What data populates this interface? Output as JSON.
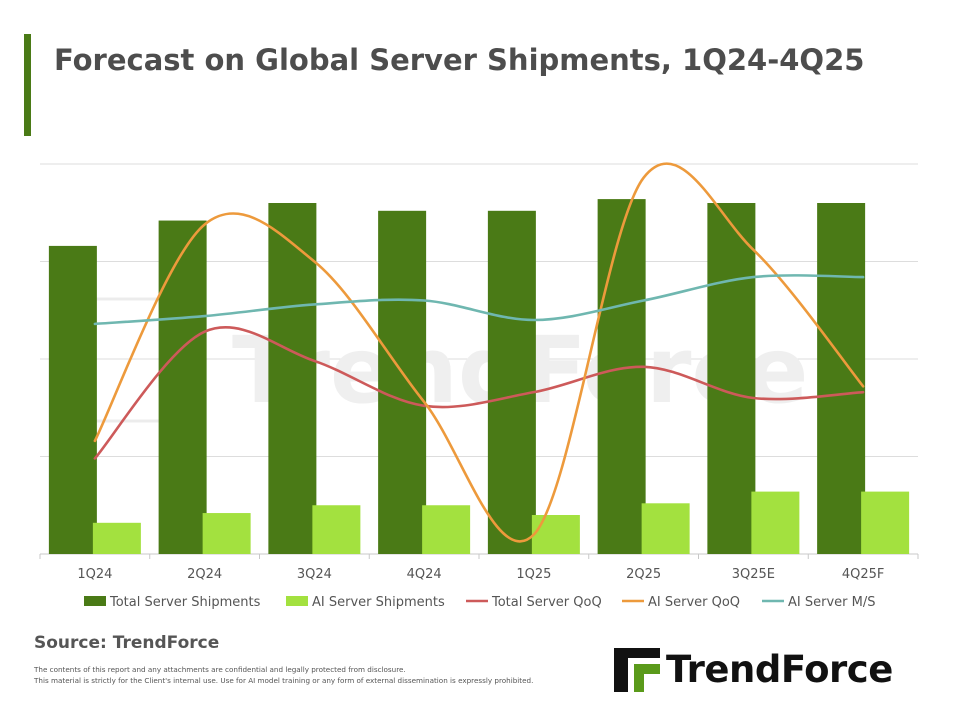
{
  "title": "Forecast on Global Server Shipments, 1Q24-4Q25",
  "source": "Source: TrendForce",
  "disclaimer": {
    "line1": "The contents of this report and any attachments are confidential and legally protected from disclosure.",
    "line2": "This material is strictly for the Client's internal use. Use for AI model training or any form of external dissemination is expressly prohibited."
  },
  "logo": {
    "text": "TrendForce",
    "icon": "trendforce-logo-icon"
  },
  "watermark": "TrendForce",
  "colors": {
    "accent": "#4a7a16",
    "total_bar": "#4a7a16",
    "ai_bar": "#a3e13f",
    "total_qoq": "#cd5a5a",
    "ai_qoq": "#ed9a3c",
    "ai_ms": "#6fb7b0"
  },
  "chart_data": {
    "type": "bar",
    "categories": [
      "1Q24",
      "2Q24",
      "3Q24",
      "4Q24",
      "1Q25",
      "2Q25",
      "3Q25E",
      "4Q25F"
    ],
    "ylim": [
      0,
      100
    ],
    "grid": true,
    "legend_position": "bottom",
    "series": [
      {
        "name": "Total Server Shipments",
        "type": "bar",
        "values": [
          79,
          85.5,
          90,
          88,
          88,
          91,
          90,
          90
        ]
      },
      {
        "name": "AI Server Shipments",
        "type": "bar",
        "values": [
          8,
          10.5,
          12.5,
          12.5,
          10,
          13,
          16,
          16
        ]
      },
      {
        "name": "Total Server QoQ",
        "type": "line",
        "values": [
          24.5,
          57,
          49.5,
          38,
          41.5,
          48,
          40,
          41.5
        ]
      },
      {
        "name": "AI Server QoQ",
        "type": "line",
        "values": [
          29,
          84.5,
          75,
          39,
          5,
          96.5,
          78,
          43
        ]
      },
      {
        "name": "AI Server M/S",
        "type": "line",
        "values": [
          59,
          61,
          64,
          65,
          60,
          65,
          71,
          71
        ]
      }
    ]
  }
}
